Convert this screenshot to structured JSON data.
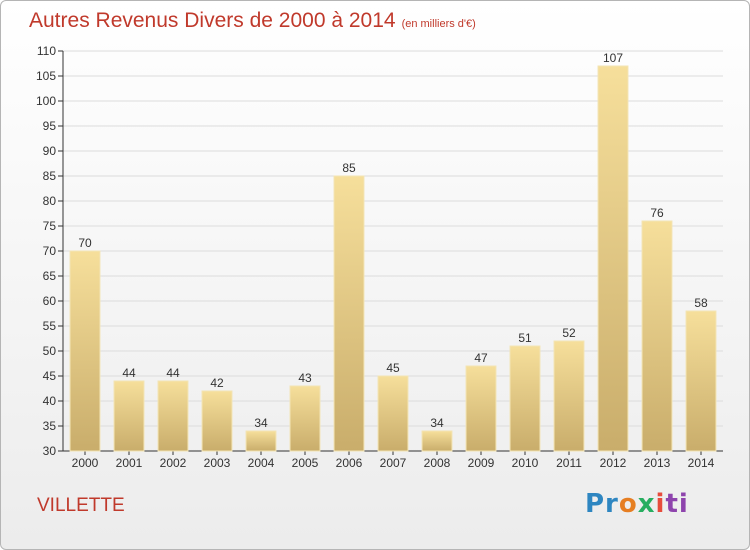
{
  "chart_data": {
    "type": "bar",
    "title": "Autres Revenus Divers de 2000 à 2014",
    "subtitle": "(en milliers d'€)",
    "categories": [
      "2000",
      "2001",
      "2002",
      "2003",
      "2004",
      "2005",
      "2006",
      "2007",
      "2008",
      "2009",
      "2010",
      "2011",
      "2012",
      "2013",
      "2014"
    ],
    "values": [
      70,
      44,
      44,
      42,
      34,
      43,
      85,
      45,
      34,
      47,
      51,
      52,
      107,
      76,
      58
    ],
    "ylim": [
      30,
      110
    ],
    "yticks": [
      30,
      35,
      40,
      45,
      50,
      55,
      60,
      65,
      70,
      75,
      80,
      85,
      90,
      95,
      100,
      105,
      110
    ],
    "xlabel": "",
    "ylabel": "",
    "grid": "horizontal",
    "bar_color": "#e8cf8a",
    "text_color": "#c0392b"
  },
  "place": "VILLETTE",
  "logo": {
    "parts": [
      "Pr",
      "o",
      "x",
      "i",
      "ti"
    ]
  }
}
